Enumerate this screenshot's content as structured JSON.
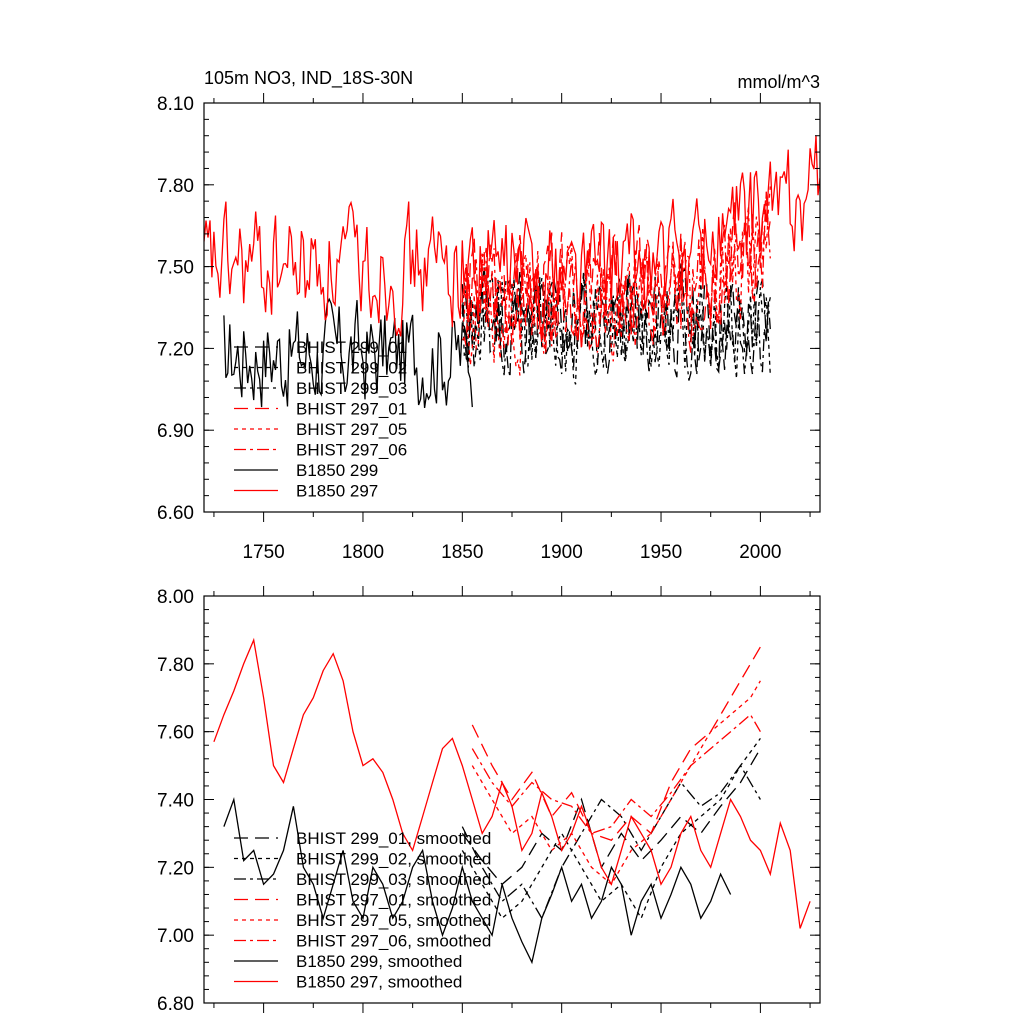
{
  "chart_data": [
    {
      "type": "line",
      "title_left": "105m NO3, IND_18S-30N",
      "title_right": "mmol/m^3",
      "xlabel": "",
      "ylabel": "",
      "xlim": [
        1720,
        2030
      ],
      "ylim": [
        6.6,
        8.1
      ],
      "x_ticks": [
        1750,
        1800,
        1850,
        1900,
        1950,
        2000
      ],
      "x_tick_labels": [
        "1750",
        "1800",
        "1850",
        "1900",
        "1950",
        "2000"
      ],
      "y_ticks": [
        6.6,
        6.9,
        7.2,
        7.5,
        7.8,
        8.1
      ],
      "y_tick_labels": [
        "6.60",
        "6.90",
        "7.20",
        "7.50",
        "7.80",
        "8.10"
      ],
      "legend": "bottom-left",
      "series": [
        {
          "name": "BHIST 299_01",
          "color": "#000000",
          "dash": "long",
          "x_range": [
            1850,
            2005
          ],
          "mean": 7.3,
          "amp": 0.28,
          "seed": 11
        },
        {
          "name": "BHIST 299_02",
          "color": "#000000",
          "dash": "short",
          "x_range": [
            1850,
            2005
          ],
          "mean": 7.28,
          "amp": 0.28,
          "seed": 12
        },
        {
          "name": "BHIST 299_03",
          "color": "#000000",
          "dash": "dashdot",
          "x_range": [
            1850,
            2005
          ],
          "mean": 7.3,
          "amp": 0.28,
          "seed": 13
        },
        {
          "name": "BHIST 297_01",
          "color": "#ff0000",
          "dash": "long",
          "x_range": [
            1850,
            2005
          ],
          "mean": 7.4,
          "amp": 0.3,
          "seed": 14
        },
        {
          "name": "BHIST 297_05",
          "color": "#ff0000",
          "dash": "short",
          "x_range": [
            1850,
            2005
          ],
          "mean": 7.36,
          "amp": 0.3,
          "seed": 15
        },
        {
          "name": "BHIST 297_06",
          "color": "#ff0000",
          "dash": "dashdot",
          "x_range": [
            1850,
            2005
          ],
          "mean": 7.38,
          "amp": 0.3,
          "seed": 16
        },
        {
          "name": "B1850 299",
          "color": "#000000",
          "dash": "solid",
          "x_range": [
            1730,
            1855
          ],
          "mean": 7.18,
          "amp": 0.28,
          "seed": 17
        },
        {
          "name": "B1850 297",
          "color": "#ff0000",
          "dash": "solid",
          "x_range": [
            1720,
            2030
          ],
          "mean": 7.5,
          "amp": 0.3,
          "seed": 18
        }
      ]
    },
    {
      "type": "line",
      "xlim": [
        1720,
        2030
      ],
      "ylim": [
        6.8,
        8.0
      ],
      "x_ticks": [
        1750,
        1800,
        1850,
        1900,
        1950,
        2000
      ],
      "x_tick_labels": [
        "",
        "",
        "",
        "",
        "",
        ""
      ],
      "y_ticks": [
        6.8,
        7.0,
        7.2,
        7.4,
        7.6,
        7.8,
        8.0
      ],
      "y_tick_labels": [
        "6.80",
        "7.00",
        "7.20",
        "7.40",
        "7.60",
        "7.80",
        "8.00"
      ],
      "legend": "bottom-left",
      "series": [
        {
          "name": "BHIST 299_01, smoothed",
          "color": "#000000",
          "dash": "long",
          "x": [
            1850,
            1860,
            1870,
            1880,
            1890,
            1900,
            1910,
            1920,
            1930,
            1940,
            1950,
            1960,
            1970,
            1980,
            1990,
            2000
          ],
          "y": [
            7.3,
            7.22,
            7.15,
            7.2,
            7.3,
            7.25,
            7.4,
            7.2,
            7.3,
            7.22,
            7.28,
            7.35,
            7.3,
            7.38,
            7.45,
            7.55
          ]
        },
        {
          "name": "BHIST 299_02, smoothed",
          "color": "#000000",
          "dash": "short",
          "x": [
            1850,
            1860,
            1870,
            1880,
            1890,
            1900,
            1910,
            1920,
            1930,
            1940,
            1950,
            1960,
            1970,
            1980,
            1990,
            2000
          ],
          "y": [
            7.25,
            7.15,
            7.05,
            7.1,
            7.2,
            7.3,
            7.2,
            7.1,
            7.15,
            7.05,
            7.2,
            7.3,
            7.35,
            7.4,
            7.5,
            7.58
          ]
        },
        {
          "name": "BHIST 299_03, smoothed",
          "color": "#000000",
          "dash": "dashdot",
          "x": [
            1850,
            1860,
            1870,
            1880,
            1890,
            1900,
            1910,
            1920,
            1930,
            1940,
            1950,
            1960,
            1970,
            1980,
            1990,
            2000
          ],
          "y": [
            7.32,
            7.2,
            7.1,
            7.15,
            7.05,
            7.2,
            7.3,
            7.4,
            7.35,
            7.25,
            7.35,
            7.45,
            7.38,
            7.42,
            7.5,
            7.4
          ]
        },
        {
          "name": "BHIST 297_01, smoothed",
          "color": "#ff0000",
          "dash": "long",
          "x": [
            1855,
            1865,
            1875,
            1885,
            1895,
            1905,
            1915,
            1925,
            1935,
            1945,
            1955,
            1965,
            1975,
            1985,
            1995,
            2000
          ],
          "y": [
            7.62,
            7.5,
            7.4,
            7.48,
            7.35,
            7.42,
            7.3,
            7.28,
            7.35,
            7.3,
            7.45,
            7.55,
            7.6,
            7.7,
            7.8,
            7.85
          ]
        },
        {
          "name": "BHIST 297_05, smoothed",
          "color": "#ff0000",
          "dash": "short",
          "x": [
            1855,
            1865,
            1875,
            1885,
            1895,
            1905,
            1915,
            1925,
            1935,
            1945,
            1955,
            1965,
            1975,
            1985,
            1995,
            2000
          ],
          "y": [
            7.5,
            7.4,
            7.3,
            7.35,
            7.25,
            7.3,
            7.2,
            7.15,
            7.25,
            7.3,
            7.4,
            7.5,
            7.6,
            7.65,
            7.7,
            7.75
          ]
        },
        {
          "name": "BHIST 297_06, smoothed",
          "color": "#ff0000",
          "dash": "dashdot",
          "x": [
            1855,
            1865,
            1875,
            1885,
            1895,
            1905,
            1915,
            1925,
            1935,
            1945,
            1955,
            1965,
            1975,
            1985,
            1995,
            2000
          ],
          "y": [
            7.55,
            7.45,
            7.38,
            7.45,
            7.4,
            7.38,
            7.3,
            7.32,
            7.4,
            7.35,
            7.42,
            7.5,
            7.55,
            7.6,
            7.65,
            7.6
          ]
        },
        {
          "name": "B1850 299, smoothed",
          "color": "#000000",
          "dash": "solid",
          "x": [
            1730,
            1735,
            1740,
            1745,
            1750,
            1755,
            1760,
            1765,
            1770,
            1775,
            1780,
            1785,
            1790,
            1795,
            1800,
            1805,
            1810,
            1815,
            1820,
            1825,
            1830,
            1835,
            1840,
            1845,
            1850,
            1855,
            1860,
            1865,
            1870,
            1875,
            1880,
            1885,
            1890,
            1895,
            1900,
            1905,
            1910,
            1915,
            1920,
            1925,
            1930,
            1935,
            1940,
            1945,
            1950,
            1955,
            1960,
            1965,
            1970,
            1975,
            1980,
            1985
          ],
          "y": [
            7.32,
            7.4,
            7.22,
            7.25,
            7.15,
            7.18,
            7.25,
            7.38,
            7.2,
            7.15,
            7.05,
            7.15,
            7.25,
            7.1,
            7.05,
            7.2,
            7.15,
            7.05,
            7.1,
            7.2,
            7.25,
            7.1,
            7.0,
            7.08,
            7.2,
            7.1,
            7.05,
            7.0,
            7.15,
            7.05,
            6.98,
            6.92,
            7.05,
            7.12,
            7.2,
            7.1,
            7.15,
            7.05,
            7.1,
            7.2,
            7.15,
            7.0,
            7.1,
            7.15,
            7.05,
            7.12,
            7.2,
            7.15,
            7.05,
            7.1,
            7.18,
            7.12
          ]
        },
        {
          "name": "B1850 297, smoothed",
          "color": "#ff0000",
          "dash": "solid",
          "x": [
            1725,
            1730,
            1735,
            1740,
            1745,
            1750,
            1755,
            1760,
            1765,
            1770,
            1775,
            1780,
            1785,
            1790,
            1795,
            1800,
            1805,
            1810,
            1815,
            1820,
            1825,
            1830,
            1835,
            1840,
            1845,
            1850,
            1855,
            1860,
            1865,
            1870,
            1875,
            1880,
            1885,
            1890,
            1895,
            1900,
            1905,
            1910,
            1915,
            1920,
            1925,
            1930,
            1935,
            1940,
            1945,
            1950,
            1955,
            1960,
            1965,
            1970,
            1975,
            1980,
            1985,
            1990,
            1995,
            2000,
            2005,
            2010,
            2015,
            2020,
            2025
          ],
          "y": [
            7.57,
            7.65,
            7.72,
            7.8,
            7.87,
            7.7,
            7.5,
            7.45,
            7.55,
            7.65,
            7.7,
            7.78,
            7.83,
            7.75,
            7.6,
            7.5,
            7.52,
            7.48,
            7.4,
            7.3,
            7.25,
            7.35,
            7.45,
            7.55,
            7.58,
            7.5,
            7.4,
            7.3,
            7.35,
            7.45,
            7.38,
            7.25,
            7.3,
            7.42,
            7.35,
            7.25,
            7.3,
            7.38,
            7.3,
            7.2,
            7.15,
            7.25,
            7.35,
            7.3,
            7.25,
            7.15,
            7.2,
            7.3,
            7.35,
            7.25,
            7.2,
            7.3,
            7.4,
            7.35,
            7.28,
            7.25,
            7.18,
            7.33,
            7.25,
            7.02,
            7.1
          ]
        }
      ]
    }
  ]
}
